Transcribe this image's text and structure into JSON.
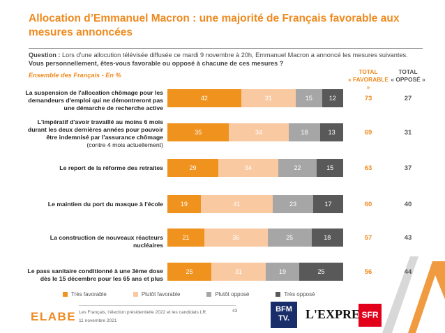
{
  "title": "Allocation d’Emmanuel Macron : une majorité de Français favorable aux mesures annoncées",
  "question": {
    "prefix": "Question : ",
    "text": "Lors d’une allocution télévisée diffusée ce mardi 9 novembre à 20h, Emmanuel Macron a annoncé les mesures suivantes. ",
    "bold": "Vous personnellement, êtes-vous favorable ou opposé à chacune de ces mesures ?"
  },
  "subtitle": "Ensemble des Français - En %",
  "columns": {
    "fav_line1": "TOTAL",
    "fav_line2": "« FAVORABLE »",
    "opp_line1": "TOTAL",
    "opp_line2": "« OPPOSÉ »"
  },
  "chart_data": {
    "type": "bar",
    "orientation": "horizontal",
    "stacked": true,
    "categories": [
      "La suspension de l'allocation chômage pour les demandeurs d'emploi qui ne démontreront pas une démarche de recherche active",
      "L'impératif d'avoir travaillé au moins 6 mois durant les deux dernières années pour pouvoir être indemnisé par l'assurance chômage (contre 4 mois actuellement)",
      "Le report de la réforme des retraites",
      "Le maintien du port du masque à l'école",
      "La construction de nouveaux réacteurs nucléaires",
      "Le pass sanitaire conditionné à une 3ème dose dès le 15 décembre pour les 65 ans et plus"
    ],
    "series": [
      {
        "name": "Très favorable",
        "color": "#f0921e",
        "values": [
          42,
          35,
          29,
          19,
          21,
          25
        ]
      },
      {
        "name": "Plutôt favorable",
        "color": "#f9c9a2",
        "values": [
          31,
          34,
          34,
          41,
          36,
          31
        ]
      },
      {
        "name": "Plutôt opposé",
        "color": "#a6a6a6",
        "values": [
          15,
          18,
          22,
          23,
          25,
          19
        ]
      },
      {
        "name": "Très opposé",
        "color": "#595959",
        "values": [
          12,
          13,
          15,
          17,
          18,
          25
        ]
      }
    ],
    "total_favorable": [
      73,
      69,
      63,
      60,
      57,
      56
    ],
    "total_oppose": [
      27,
      31,
      37,
      40,
      43,
      44
    ],
    "xlim": [
      0,
      100
    ]
  },
  "legend": [
    "Très favorable",
    "Plutôt favorable",
    "Plutôt opposé",
    "Très opposé"
  ],
  "footer": {
    "line1": "Les Français, l’élection présidentielle 2022 et les candidats LR",
    "line2": "11 novembre 2021",
    "page": "43"
  },
  "logos": {
    "elabe": "ELABE",
    "bfm_line1": "BFM",
    "bfm_line2": "TV.",
    "express": "L'EXPRESS",
    "sfr": "SFR"
  }
}
